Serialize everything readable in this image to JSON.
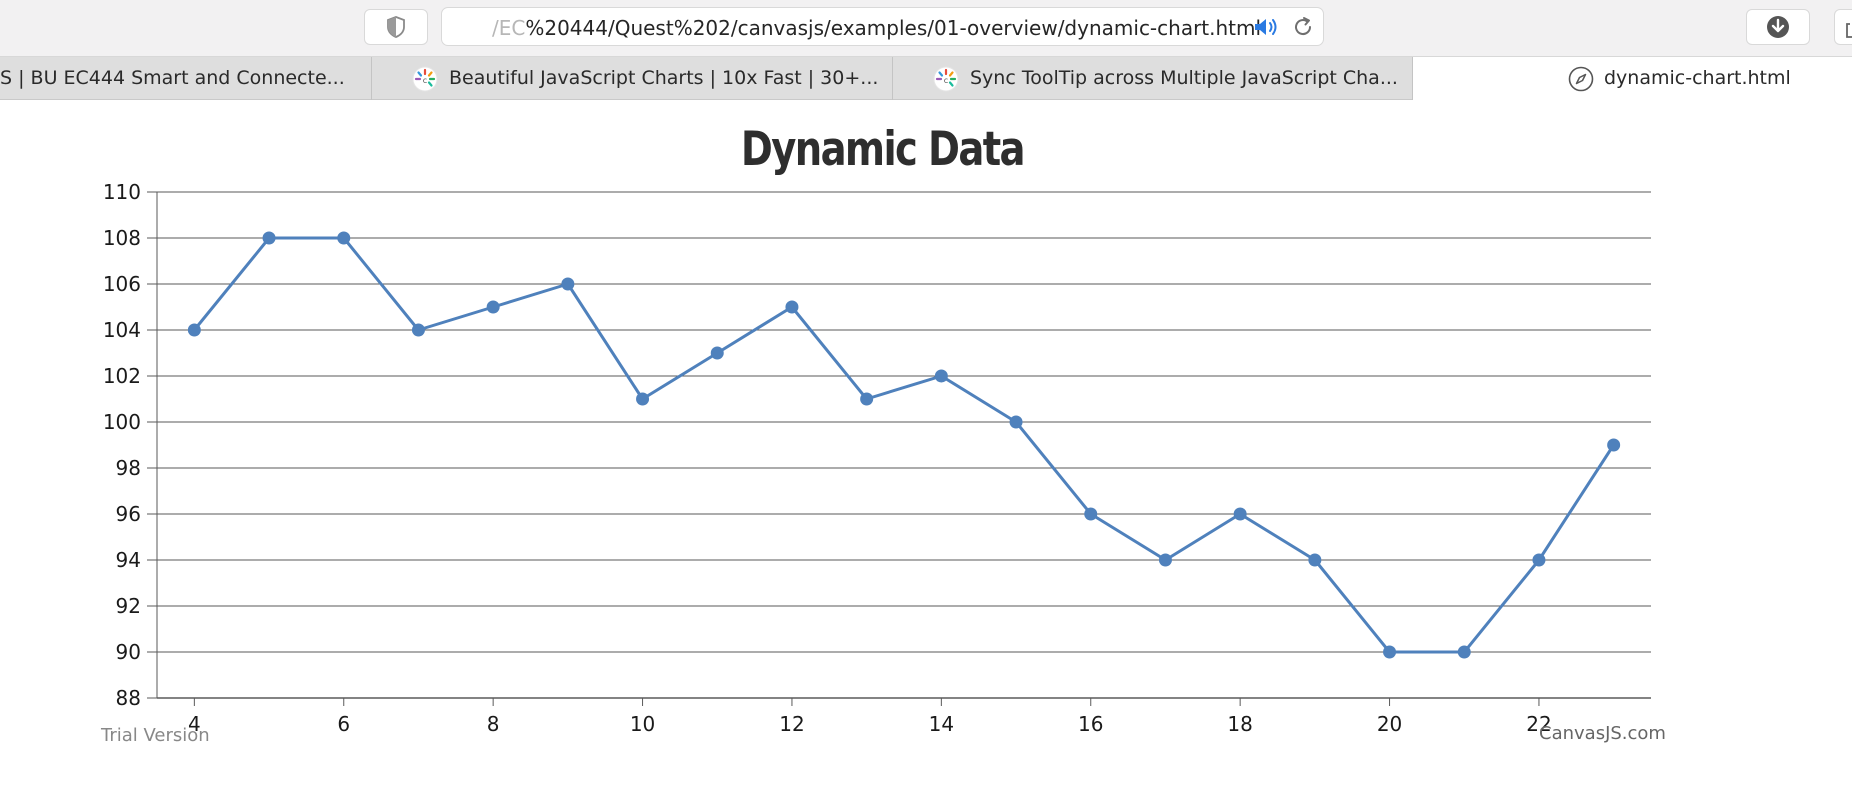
{
  "browser": {
    "url_faded": "/EC",
    "url_main": "%20444/Quest%202/canvasjs/examples/01-overview/dynamic-chart.html",
    "icons": {
      "shield": "shield-icon",
      "speaker": "speaker-icon",
      "reload": "reload-icon",
      "download": "download-icon",
      "share": "share-icon"
    },
    "accent_color": "#2a7ae2",
    "tabs": [
      {
        "label": "S | BU EC444 Smart and Connecte..."
      },
      {
        "label": "Beautiful JavaScript Charts | 10x Fast | 30+..."
      },
      {
        "label": "Sync ToolTip across Multiple JavaScript Cha..."
      },
      {
        "label": "dynamic-chart.html"
      }
    ]
  },
  "chart_data": {
    "type": "line",
    "title": "Dynamic Data",
    "xlabel": "",
    "ylabel": "",
    "xlim": [
      3.5,
      23.5
    ],
    "ylim": [
      88,
      110
    ],
    "x_ticks": [
      4,
      6,
      8,
      10,
      12,
      14,
      16,
      18,
      20,
      22
    ],
    "y_ticks": [
      88,
      90,
      92,
      94,
      96,
      98,
      100,
      102,
      104,
      106,
      108,
      110
    ],
    "grid": true,
    "line_color": "#4f81bc",
    "series": [
      {
        "x": [
          4,
          5,
          6,
          7,
          8,
          9,
          10,
          11,
          12,
          13,
          14,
          15,
          16,
          17,
          18,
          19,
          20,
          21,
          22,
          23
        ],
        "values": [
          104,
          108,
          108,
          104,
          105,
          106,
          101,
          103,
          105,
          101,
          102,
          100,
          96,
          94,
          96,
          94,
          90,
          90,
          94,
          99
        ]
      }
    ]
  },
  "footer": {
    "trial_text": "Trial Version",
    "credit_text": "CanvasJS.com"
  }
}
